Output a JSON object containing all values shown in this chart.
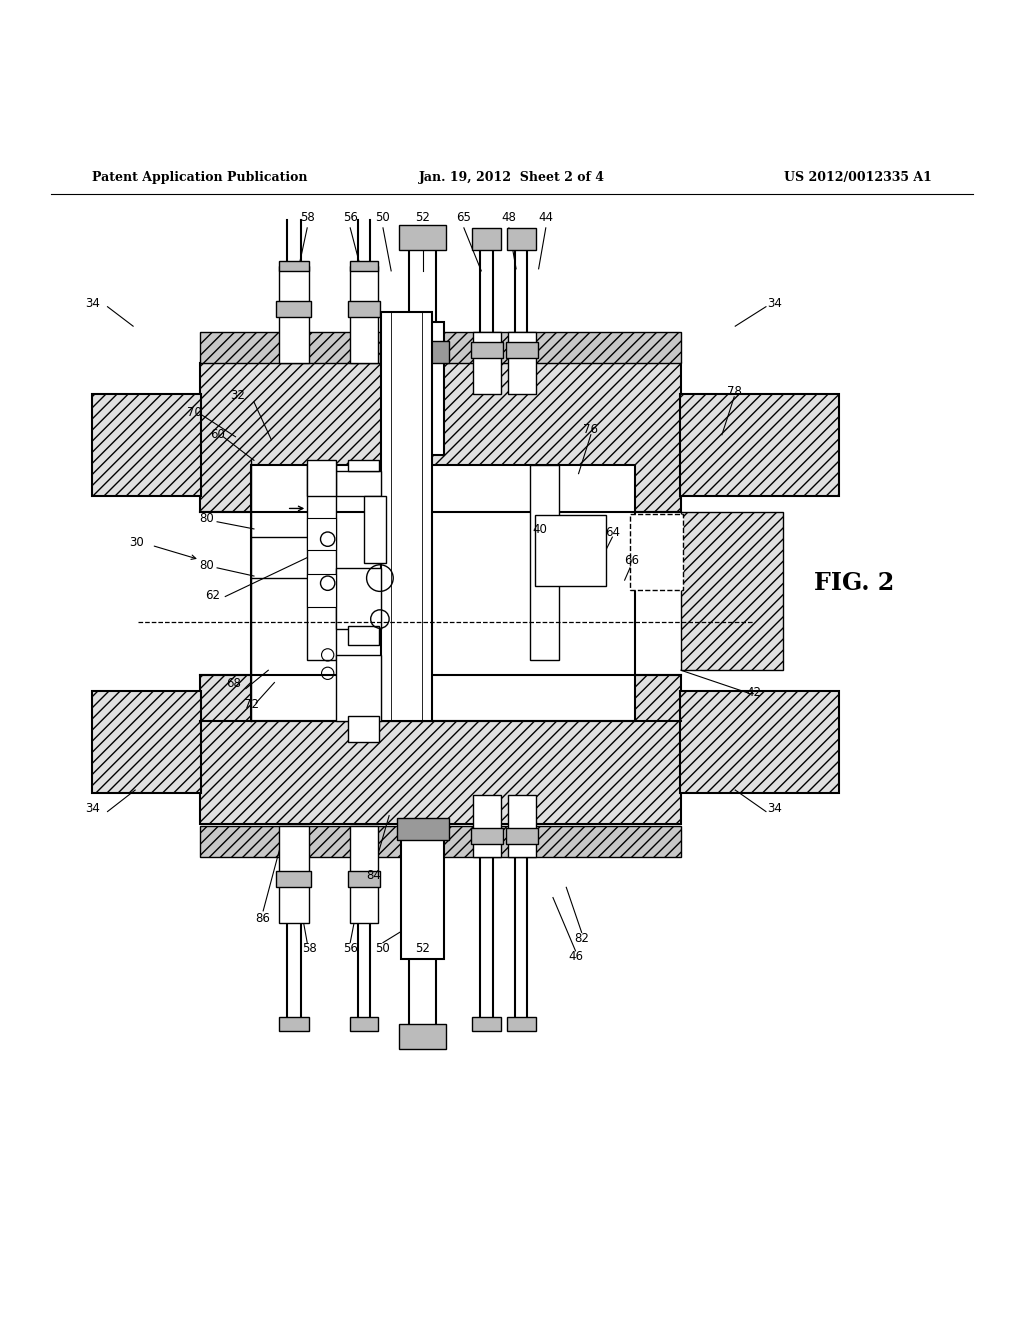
{
  "title_left": "Patent Application Publication",
  "title_center": "Jan. 19, 2012  Sheet 2 of 4",
  "title_right": "US 2012/0012335 A1",
  "fig_label": "FIG. 2",
  "background": "#ffffff",
  "hatch_color": "#000000",
  "line_color": "#000000"
}
